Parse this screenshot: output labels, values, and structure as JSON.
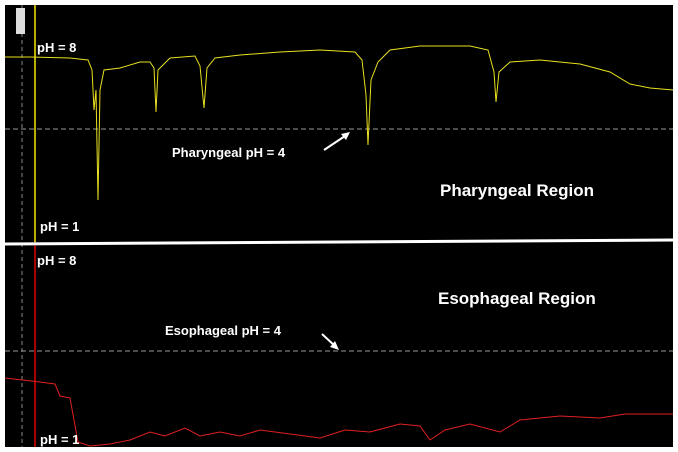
{
  "pharyngeal": {
    "top_label": "pH = 8",
    "threshold_label": "Pharyngeal pH = 4",
    "region_label": "Pharyngeal Region",
    "bottom_label": "pH = 1"
  },
  "esophageal": {
    "top_label": "pH = 8",
    "threshold_label": "Esophageal pH = 4",
    "region_label": "Esophageal Region",
    "bottom_label": "pH = 1"
  }
}
